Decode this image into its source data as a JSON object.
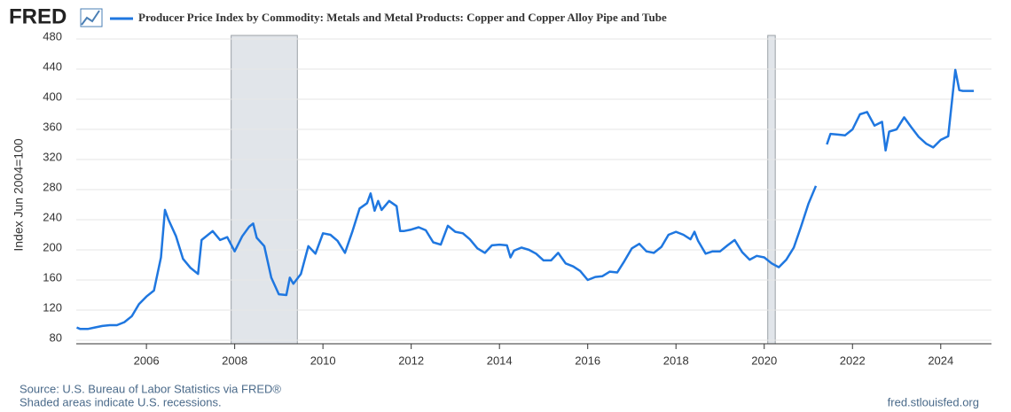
{
  "logo": "FRED",
  "footer": {
    "source": "Source: U.S. Bureau of Labor Statistics via FRED®",
    "note": "Shaded areas indicate U.S. recessions.",
    "url": "fred.stlouisfed.org"
  },
  "chart_data": {
    "type": "line",
    "y_label": "Index Jun 2004=100",
    "x": [
      2004.42,
      2004.5,
      2004.67,
      2004.83,
      2005,
      2005.17,
      2005.33,
      2005.5,
      2005.67,
      2005.83,
      2006,
      2006.17,
      2006.33,
      2006.42,
      2006.5,
      2006.67,
      2006.83,
      2007,
      2007.17,
      2007.25,
      2007.5,
      2007.67,
      2007.83,
      2008,
      2008.17,
      2008.33,
      2008.42,
      2008.5,
      2008.67,
      2008.83,
      2009,
      2009.17,
      2009.25,
      2009.33,
      2009.5,
      2009.67,
      2009.83,
      2010,
      2010.17,
      2010.33,
      2010.5,
      2010.67,
      2010.83,
      2011,
      2011.08,
      2011.17,
      2011.25,
      2011.33,
      2011.5,
      2011.67,
      2011.75,
      2011.83,
      2012,
      2012.17,
      2012.33,
      2012.5,
      2012.67,
      2012.83,
      2013,
      2013.17,
      2013.33,
      2013.5,
      2013.67,
      2013.83,
      2014,
      2014.17,
      2014.25,
      2014.33,
      2014.5,
      2014.67,
      2014.83,
      2015,
      2015.17,
      2015.33,
      2015.5,
      2015.67,
      2015.83,
      2016,
      2016.17,
      2016.33,
      2016.5,
      2016.67,
      2016.83,
      2017,
      2017.17,
      2017.33,
      2017.5,
      2017.67,
      2017.83,
      2018,
      2018.17,
      2018.33,
      2018.42,
      2018.5,
      2018.67,
      2018.83,
      2019,
      2019.17,
      2019.33,
      2019.5,
      2019.67,
      2019.83,
      2020,
      2020.17,
      2020.33,
      2020.5,
      2020.67,
      2020.83,
      2021,
      2021.17,
      2021.25,
      2021.42,
      2021.5,
      2021.67,
      2021.83,
      2022,
      2022.17,
      2022.33,
      2022.5,
      2022.67,
      2022.75,
      2022.83,
      2023,
      2023.17,
      2023.33,
      2023.5,
      2023.67,
      2023.83,
      2024,
      2024.17,
      2024.33,
      2024.42,
      2024.5,
      2024.67,
      2024.75
    ],
    "series": [
      {
        "name": "Producer Price Index by Commodity: Metals and Metal Products: Copper and Copper Alloy Pipe and Tube",
        "color": "#1f77e0",
        "values": [
          97,
          95,
          95,
          97,
          99,
          100,
          100,
          104,
          112,
          128,
          138,
          146,
          190,
          253,
          240,
          218,
          188,
          176,
          168,
          213,
          225,
          213,
          217,
          198,
          218,
          231,
          235,
          216,
          205,
          163,
          141,
          140,
          163,
          155,
          168,
          205,
          195,
          222,
          220,
          212,
          196,
          225,
          255,
          262,
          275,
          252,
          265,
          253,
          265,
          258,
          225,
          225,
          227,
          230,
          226,
          210,
          207,
          232,
          224,
          222,
          214,
          202,
          196,
          206,
          207,
          206,
          190,
          199,
          203,
          200,
          195,
          186,
          186,
          196,
          182,
          178,
          172,
          160,
          164,
          165,
          171,
          170,
          185,
          202,
          208,
          198,
          196,
          204,
          220,
          224,
          220,
          214,
          224,
          212,
          195,
          198,
          198,
          206,
          213,
          197,
          187,
          192,
          190,
          182,
          177,
          187,
          203,
          230,
          261,
          285,
          null,
          340,
          354,
          353,
          352,
          360,
          380,
          383,
          365,
          370,
          332,
          357,
          360,
          376,
          363,
          350,
          341,
          336,
          346,
          351,
          439,
          412,
          411,
          411,
          411
        ]
      }
    ],
    "recessions": [
      [
        2007.92,
        2009.42
      ],
      [
        2020.08,
        2020.25
      ]
    ],
    "xlim": [
      2004.41,
      2025.15
    ],
    "xticks": [
      2006,
      2008,
      2010,
      2012,
      2014,
      2016,
      2018,
      2020,
      2022,
      2024
    ],
    "ylim": [
      80,
      480
    ],
    "yticks": [
      80,
      120,
      160,
      200,
      240,
      280,
      320,
      360,
      400,
      440,
      480
    ],
    "grid": true
  }
}
